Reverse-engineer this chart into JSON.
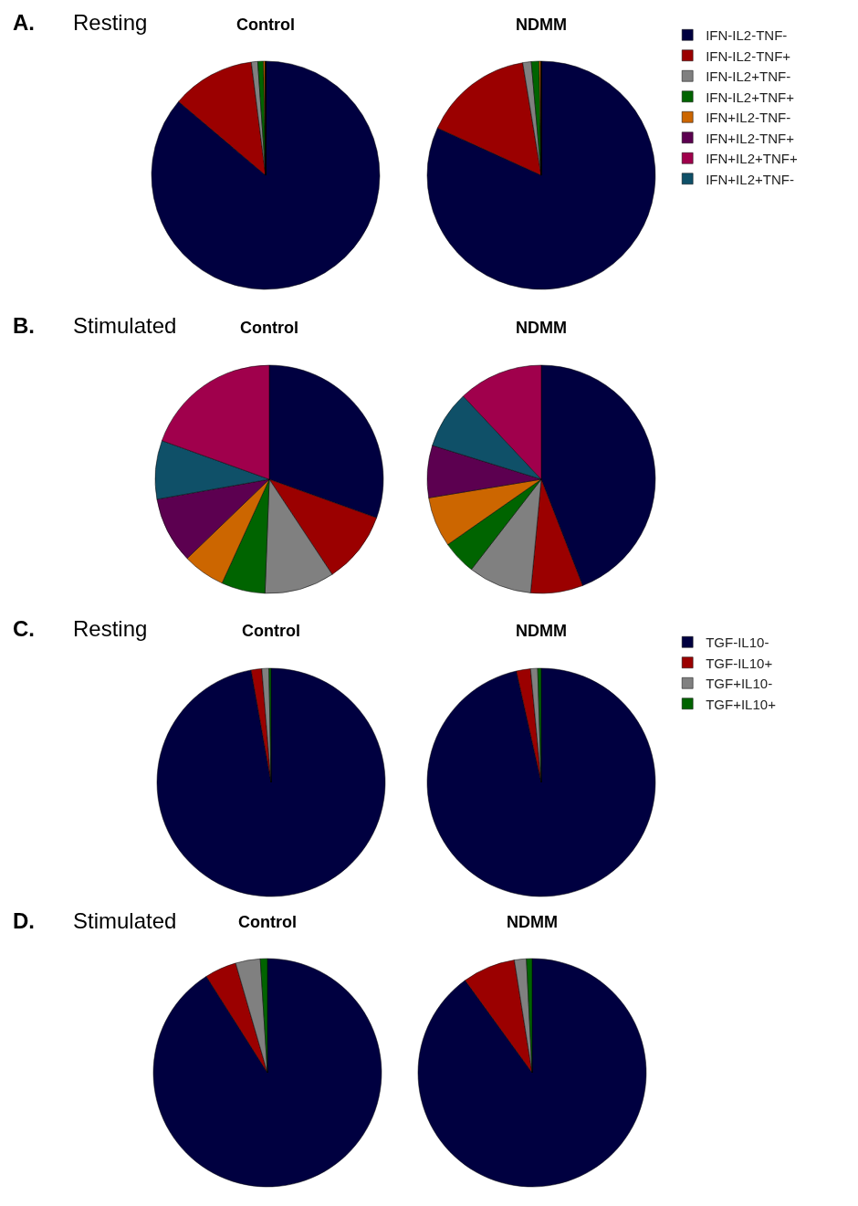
{
  "chart_data": [
    {
      "type": "pie",
      "title": "Control",
      "annotations": [
        "A.",
        "Resting"
      ],
      "legend": "right",
      "categories": [
        "IFN-IL2-TNF-",
        "IFN-IL2-TNF+",
        "IFN-IL2+TNF-",
        "IFN-IL2+TNF+",
        "IFN+IL2-TNF-",
        "IFN+IL2-TNF+",
        "IFN+IL2+TNF+",
        "IFN+IL2+TNF-"
      ],
      "values": [
        86.1,
        11.8,
        0.9,
        0.8,
        0.3,
        0,
        0,
        0
      ],
      "colors": [
        "#000040",
        "#9b0000",
        "#808080",
        "#006400",
        "#cc6600",
        "#5c0050",
        "#a0004c",
        "#0f5068"
      ]
    },
    {
      "type": "pie",
      "title": "NDMM",
      "categories": [
        null,
        null,
        null,
        null,
        null,
        null,
        null,
        null
      ],
      "values": [
        81.8,
        15.6,
        1.2,
        1.1,
        0.3,
        0,
        0,
        0
      ],
      "colors": [
        "#000040",
        "#9b0000",
        "#808080",
        "#006400",
        "#cc6600",
        "#5c0050",
        "#a0004c",
        "#0f5068"
      ]
    },
    {
      "type": "pie",
      "title": "Control",
      "annotations": [
        "B.",
        "Stimulated"
      ],
      "categories": [
        null,
        null,
        null,
        null,
        null,
        null,
        null,
        null
      ],
      "values": [
        30.5,
        10.2,
        9.9,
        6.2,
        6.0,
        9.4,
        8.3,
        19.5
      ],
      "colors": [
        "#000040",
        "#9b0000",
        "#808080",
        "#006400",
        "#cc6600",
        "#5c0050",
        "#0f5068",
        "#a0004c"
      ]
    },
    {
      "type": "pie",
      "title": "NDMM",
      "categories": [
        null,
        null,
        null,
        null,
        null,
        null,
        null,
        null
      ],
      "values": [
        44.1,
        7.4,
        9.0,
        4.8,
        7.1,
        7.4,
        8.2,
        12.0
      ],
      "colors": [
        "#000040",
        "#9b0000",
        "#808080",
        "#006400",
        "#cc6600",
        "#5c0050",
        "#0f5068",
        "#a0004c"
      ]
    },
    {
      "type": "pie",
      "title": "Control",
      "annotations": [
        "C.",
        "Resting"
      ],
      "legend": "right",
      "categories": [
        "TGF-IL10-",
        "TGF-IL10+",
        "TGF+IL10-",
        "TGF+IL10+"
      ],
      "values": [
        97.2,
        1.5,
        1.0,
        0.3
      ],
      "colors": [
        "#000040",
        "#9b0000",
        "#808080",
        "#006400"
      ]
    },
    {
      "type": "pie",
      "title": "NDMM",
      "categories": [
        null,
        null,
        null,
        null
      ],
      "values": [
        96.5,
        2.0,
        1.0,
        0.5
      ],
      "colors": [
        "#000040",
        "#9b0000",
        "#808080",
        "#006400"
      ]
    },
    {
      "type": "pie",
      "title": "Control",
      "annotations": [
        "D.",
        "Stimulated"
      ],
      "categories": [
        null,
        null,
        null,
        null
      ],
      "values": [
        91.0,
        4.5,
        3.5,
        1.0
      ],
      "colors": [
        "#000040",
        "#9b0000",
        "#808080",
        "#006400"
      ]
    },
    {
      "type": "pie",
      "title": "NDMM",
      "categories": [
        null,
        null,
        null,
        null
      ],
      "values": [
        90.0,
        7.5,
        1.7,
        0.8
      ],
      "colors": [
        "#000040",
        "#9b0000",
        "#808080",
        "#006400"
      ]
    }
  ]
}
